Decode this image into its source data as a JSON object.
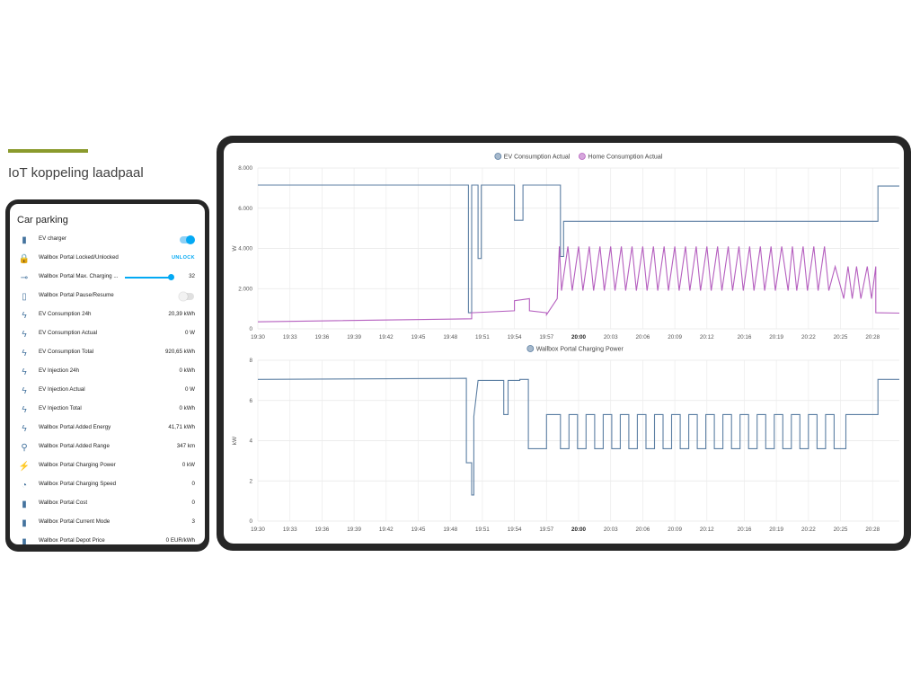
{
  "slide": {
    "title": "IoT koppeling laadpaal",
    "accent_color": "#8a9a2c"
  },
  "card": {
    "title": "Car parking",
    "entities": [
      {
        "icon": "ev-station-icon",
        "name": "EV charger",
        "control": "toggle-on"
      },
      {
        "icon": "lock-icon",
        "name": "Wallbox Portal Locked/Unlocked",
        "value": "UNLOCK",
        "control": "link"
      },
      {
        "icon": "slider-icon",
        "name": "Wallbox Portal Max. Charging ...",
        "value": "32",
        "control": "slider",
        "slider_fraction": 0.95
      },
      {
        "icon": "pause-icon",
        "name": "Wallbox Portal Pause/Resume",
        "control": "toggle-off"
      },
      {
        "icon": "flash-icon",
        "name": "EV Consumption 24h",
        "value": "20,39 kWh"
      },
      {
        "icon": "flash-icon",
        "name": "EV Consumption Actual",
        "value": "0 W"
      },
      {
        "icon": "flash-icon",
        "name": "EV Consumption Total",
        "value": "920,65 kWh"
      },
      {
        "icon": "flash-icon",
        "name": "EV Injection 24h",
        "value": "0 kWh"
      },
      {
        "icon": "flash-icon",
        "name": "EV Injection Actual",
        "value": "0 W"
      },
      {
        "icon": "flash-icon",
        "name": "EV Injection Total",
        "value": "0 kWh"
      },
      {
        "icon": "flash-icon",
        "name": "Wallbox Portal Added Energy",
        "value": "41,71 kWh"
      },
      {
        "icon": "range-icon",
        "name": "Wallbox Portal Added Range",
        "value": "347 km"
      },
      {
        "icon": "charging-icon",
        "name": "Wallbox Portal Charging Power",
        "value": "0 kW"
      },
      {
        "icon": "speedometer-icon",
        "name": "Wallbox Portal Charging Speed",
        "value": "0"
      },
      {
        "icon": "ev-station-icon",
        "name": "Wallbox Portal Cost",
        "value": "0"
      },
      {
        "icon": "ev-station-icon",
        "name": "Wallbox Portal Current Mode",
        "value": "3"
      },
      {
        "icon": "ev-station-icon",
        "name": "Wallbox Portal Depot Price",
        "value": "0 EUR/kWh"
      }
    ]
  },
  "chart_data": [
    {
      "type": "line",
      "ylabel": "W",
      "ylim": [
        0,
        8000
      ],
      "yticks": [
        "0",
        "2.000",
        "4.000",
        "6.000",
        "8.000"
      ],
      "xlim_minutes": [
        0,
        60
      ],
      "xticks": [
        "19:30",
        "19:33",
        "19:36",
        "19:39",
        "19:42",
        "19:45",
        "19:48",
        "19:51",
        "19:54",
        "19:57",
        "20:00",
        "20:03",
        "20:06",
        "20:09",
        "20:12",
        "20:16",
        "20:19",
        "20:22",
        "20:25",
        "20:28"
      ],
      "legend_position": "top-center",
      "grid": true,
      "series": [
        {
          "name": "EV Consumption Actual",
          "color": "#5c7fa3",
          "x": [
            0,
            19.7,
            19.7,
            20,
            20,
            20.2,
            20.2,
            20.6,
            20.6,
            20.9,
            20.9,
            21.2,
            21.2,
            24,
            24,
            24.8,
            24.8,
            25.2,
            25.2,
            28.3,
            28.3,
            28.6,
            28.6,
            58,
            58,
            60
          ],
          "y": [
            7150,
            7150,
            800,
            800,
            7150,
            7150,
            7150,
            7150,
            3500,
            3500,
            7150,
            7150,
            7150,
            7150,
            5400,
            5400,
            7150,
            7150,
            7150,
            7150,
            3600,
            3600,
            5350,
            5350,
            7100,
            7100
          ]
        },
        {
          "name": "Home Consumption Actual",
          "color": "#b55fbf",
          "x": [
            0,
            20,
            20,
            24,
            24,
            25.4,
            25.4,
            27,
            27,
            28,
            28.2,
            28.4,
            29,
            29.4,
            30,
            30.4,
            31,
            31.4,
            32,
            32.4,
            33,
            33.4,
            34,
            34.4,
            35,
            35.4,
            36,
            36.4,
            37,
            37.4,
            38,
            38.4,
            39,
            39.4,
            40,
            40.4,
            41,
            41.4,
            42,
            42.4,
            43,
            43.4,
            44,
            44.4,
            45,
            45.4,
            46,
            46.4,
            47,
            47.4,
            48,
            48.4,
            49,
            49.6,
            50,
            50.4,
            51,
            51.4,
            52,
            52.4,
            53,
            53.4,
            54,
            54.8,
            55.2,
            55.6,
            56,
            56.4,
            57,
            57.4,
            57.8,
            57.8,
            60
          ],
          "y": [
            350,
            500,
            800,
            900,
            1400,
            1500,
            900,
            800,
            700,
            1500,
            4100,
            1900,
            4100,
            1900,
            4100,
            1900,
            4100,
            1900,
            4100,
            1900,
            4100,
            1900,
            4100,
            1900,
            4100,
            1900,
            4100,
            1900,
            4100,
            1900,
            4100,
            1900,
            4100,
            1900,
            4100,
            1900,
            4100,
            1900,
            4100,
            1900,
            4100,
            1900,
            4100,
            1900,
            4100,
            1900,
            4100,
            1900,
            4100,
            1900,
            4100,
            1900,
            4100,
            1900,
            4100,
            1900,
            4100,
            1900,
            4100,
            1900,
            4100,
            1900,
            3100,
            1500,
            3100,
            1500,
            3100,
            1500,
            3100,
            1500,
            3100,
            800,
            780
          ]
        }
      ]
    },
    {
      "type": "line",
      "ylabel": "kW",
      "ylim": [
        0,
        8
      ],
      "yticks": [
        "0",
        "2",
        "4",
        "6",
        "8"
      ],
      "xlim_minutes": [
        0,
        60
      ],
      "xticks": [
        "19:30",
        "19:33",
        "19:36",
        "19:39",
        "19:42",
        "19:45",
        "19:48",
        "19:51",
        "19:54",
        "19:57",
        "20:00",
        "20:03",
        "20:06",
        "20:09",
        "20:12",
        "20:16",
        "20:19",
        "20:22",
        "20:25",
        "20:28"
      ],
      "legend_position": "top-center",
      "grid": true,
      "series": [
        {
          "name": "Wallbox Portal Charging Power",
          "color": "#5c7fa3",
          "x": [
            0,
            19.5,
            19.5,
            20,
            20,
            20.2,
            20.2,
            20.6,
            20.6,
            23,
            23,
            23.4,
            23.4,
            24.5,
            24.5,
            25.3,
            25.3,
            27,
            27,
            28.3,
            28.3,
            29.1,
            29.1,
            29.9,
            29.9,
            30.7,
            30.7,
            31.5,
            31.5,
            32.3,
            32.3,
            33.1,
            33.1,
            33.9,
            33.9,
            34.7,
            34.7,
            35.5,
            35.5,
            36.3,
            36.3,
            37.1,
            37.1,
            37.9,
            37.9,
            38.7,
            38.7,
            39.5,
            39.5,
            40.3,
            40.3,
            41.1,
            41.1,
            41.9,
            41.9,
            42.7,
            42.7,
            43.5,
            43.5,
            44.3,
            44.3,
            45.1,
            45.1,
            45.9,
            45.9,
            46.7,
            46.7,
            47.5,
            47.5,
            48.3,
            48.3,
            49.1,
            49.1,
            49.9,
            49.9,
            50.7,
            50.7,
            51.5,
            51.5,
            52.3,
            52.3,
            53.1,
            53.1,
            53.9,
            53.9,
            55,
            55,
            58,
            58,
            60
          ],
          "y": [
            7.05,
            7.1,
            2.9,
            2.9,
            1.3,
            1.3,
            5.2,
            7,
            7,
            7,
            5.3,
            5.3,
            7,
            7,
            7.05,
            7.05,
            3.6,
            3.6,
            5.3,
            5.3,
            3.6,
            3.6,
            5.3,
            5.3,
            3.6,
            3.6,
            5.3,
            5.3,
            3.6,
            3.6,
            5.3,
            5.3,
            3.6,
            3.6,
            5.3,
            5.3,
            3.6,
            3.6,
            5.3,
            5.3,
            3.6,
            3.6,
            5.3,
            5.3,
            3.6,
            3.6,
            5.3,
            5.3,
            3.6,
            3.6,
            5.3,
            5.3,
            3.6,
            3.6,
            5.3,
            5.3,
            3.6,
            3.6,
            5.3,
            5.3,
            3.6,
            3.6,
            5.3,
            5.3,
            3.6,
            3.6,
            5.3,
            5.3,
            3.6,
            3.6,
            5.3,
            5.3,
            3.6,
            3.6,
            5.3,
            5.3,
            3.6,
            3.6,
            5.3,
            5.3,
            3.6,
            3.6,
            5.3,
            5.3,
            3.6,
            3.6,
            5.3,
            5.3,
            7.05,
            7.05
          ]
        }
      ]
    }
  ]
}
